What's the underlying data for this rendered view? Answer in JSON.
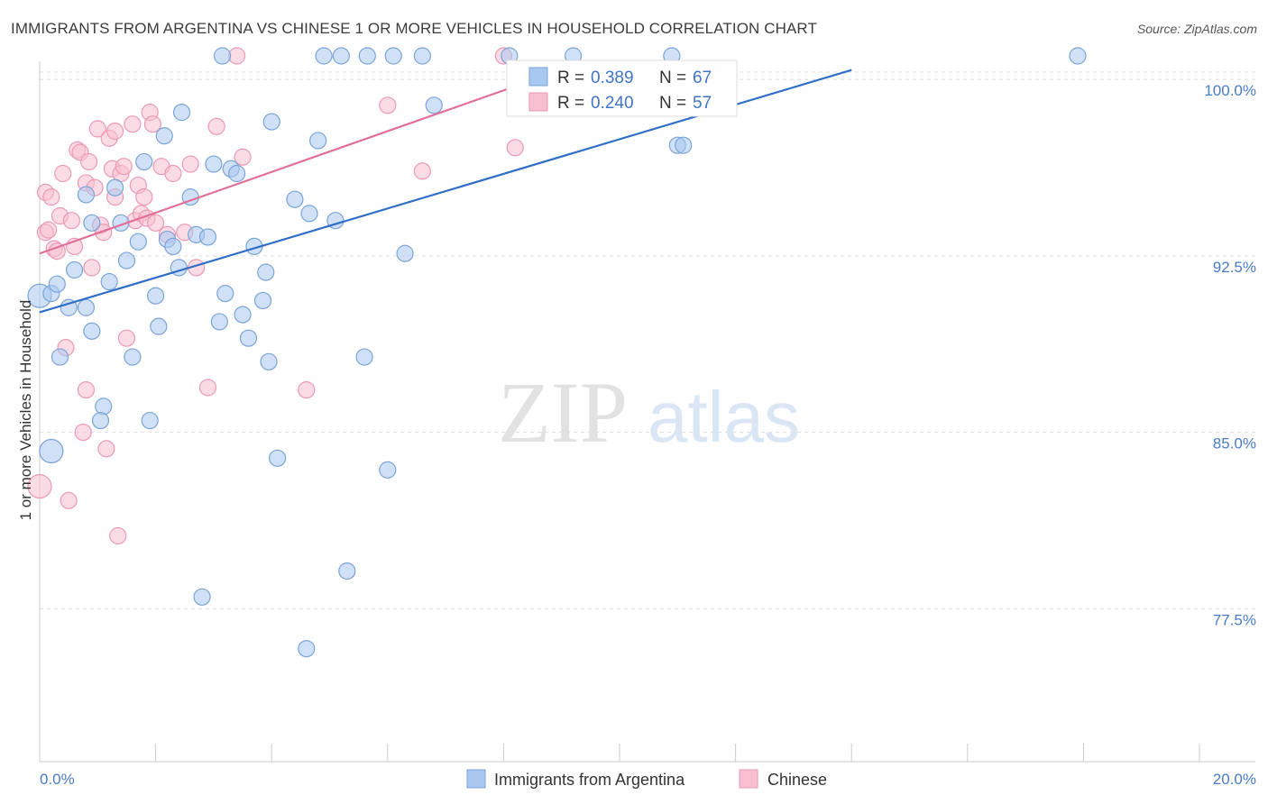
{
  "title": "IMMIGRANTS FROM ARGENTINA VS CHINESE 1 OR MORE VEHICLES IN HOUSEHOLD CORRELATION CHART",
  "source": "Source: ZipAtlas.com",
  "watermark": {
    "zip": "ZIP",
    "atlas": "atlas"
  },
  "colors": {
    "argentina_fill": "#a9c8f0",
    "argentina_stroke": "#7aa4d8",
    "argentina_line": "#2f6fc8",
    "chinese_fill": "#f7bfd0",
    "chinese_stroke": "#eb9ab4",
    "chinese_line": "#e0709a",
    "tick_text": "#4a7cc9",
    "grid": "#dddddd"
  },
  "legend": {
    "rows": [
      {
        "r_label": "R =",
        "r_value": "0.389",
        "n_label": "N =",
        "n_value": "67"
      },
      {
        "r_label": "R =",
        "r_value": "0.240",
        "n_label": "N =",
        "n_value": "57"
      }
    ]
  },
  "chart_data": {
    "type": "scatter",
    "xlabel": "",
    "ylabel": "1 or more Vehicles in Household",
    "xlim": [
      0,
      20
    ],
    "ylim": [
      71,
      101
    ],
    "x_tick_labels": [
      "0.0%",
      "20.0%"
    ],
    "y_ticks": [
      77.5,
      85.0,
      92.5,
      100.0
    ],
    "y_tick_labels": [
      "77.5%",
      "85.0%",
      "92.5%",
      "100.0%"
    ],
    "grid": "horizontal dashed",
    "legend_placement": "top-center",
    "bottom_legend": [
      "Immigrants from Argentina",
      "Chinese"
    ],
    "series": [
      {
        "name": "Immigrants from Argentina",
        "trendline": [
          [
            0,
            90.1
          ],
          [
            14.0,
            100.4
          ]
        ],
        "points": [
          [
            0.0,
            90.8
          ],
          [
            0.2,
            90.9
          ],
          [
            0.3,
            91.3
          ],
          [
            0.5,
            90.3
          ],
          [
            0.2,
            84.2
          ],
          [
            0.35,
            88.2
          ],
          [
            0.6,
            91.9
          ],
          [
            0.8,
            90.3
          ],
          [
            0.9,
            89.3
          ],
          [
            0.8,
            95.1
          ],
          [
            0.9,
            93.9
          ],
          [
            1.1,
            86.1
          ],
          [
            1.05,
            85.5
          ],
          [
            1.2,
            91.4
          ],
          [
            1.3,
            95.4
          ],
          [
            1.4,
            93.9
          ],
          [
            1.5,
            92.3
          ],
          [
            1.6,
            88.2
          ],
          [
            1.7,
            93.1
          ],
          [
            1.8,
            96.5
          ],
          [
            1.9,
            85.5
          ],
          [
            2.0,
            90.8
          ],
          [
            2.05,
            89.5
          ],
          [
            2.15,
            97.6
          ],
          [
            2.2,
            93.2
          ],
          [
            2.3,
            92.9
          ],
          [
            2.4,
            92.0
          ],
          [
            2.45,
            98.6
          ],
          [
            2.6,
            95.0
          ],
          [
            2.7,
            93.4
          ],
          [
            2.8,
            78.0
          ],
          [
            2.9,
            93.3
          ],
          [
            3.0,
            96.4
          ],
          [
            3.1,
            89.7
          ],
          [
            3.15,
            101.0
          ],
          [
            3.2,
            90.9
          ],
          [
            3.3,
            96.2
          ],
          [
            3.4,
            96.0
          ],
          [
            3.5,
            90.0
          ],
          [
            3.6,
            89.0
          ],
          [
            3.7,
            92.9
          ],
          [
            3.85,
            90.6
          ],
          [
            3.9,
            91.8
          ],
          [
            3.95,
            88.0
          ],
          [
            4.0,
            98.2
          ],
          [
            4.1,
            83.9
          ],
          [
            4.4,
            94.9
          ],
          [
            4.6,
            75.8
          ],
          [
            4.65,
            94.3
          ],
          [
            4.8,
            97.4
          ],
          [
            4.9,
            101.0
          ],
          [
            5.1,
            94.0
          ],
          [
            5.2,
            101.0
          ],
          [
            5.3,
            79.1
          ],
          [
            5.6,
            88.2
          ],
          [
            5.65,
            101.0
          ],
          [
            6.0,
            83.4
          ],
          [
            6.1,
            101.0
          ],
          [
            6.3,
            92.6
          ],
          [
            6.6,
            101.0
          ],
          [
            6.8,
            98.9
          ],
          [
            8.1,
            101.0
          ],
          [
            9.2,
            101.0
          ],
          [
            10.9,
            101.0
          ],
          [
            11.0,
            97.2
          ],
          [
            11.1,
            97.2
          ],
          [
            17.9,
            101.0
          ]
        ]
      },
      {
        "name": "Chinese",
        "trendline": [
          [
            0,
            92.6
          ],
          [
            9.0,
            100.4
          ]
        ],
        "points": [
          [
            0.0,
            82.7
          ],
          [
            0.1,
            95.2
          ],
          [
            0.1,
            93.5
          ],
          [
            0.15,
            93.6
          ],
          [
            0.2,
            95.0
          ],
          [
            0.25,
            92.8
          ],
          [
            0.3,
            92.7
          ],
          [
            0.35,
            94.2
          ],
          [
            0.4,
            96.0
          ],
          [
            0.45,
            88.6
          ],
          [
            0.5,
            82.1
          ],
          [
            0.55,
            94.0
          ],
          [
            0.6,
            92.9
          ],
          [
            0.65,
            97.0
          ],
          [
            0.7,
            96.9
          ],
          [
            0.75,
            85.0
          ],
          [
            0.8,
            95.6
          ],
          [
            0.8,
            86.8
          ],
          [
            0.85,
            96.5
          ],
          [
            0.9,
            92.0
          ],
          [
            0.95,
            95.4
          ],
          [
            1.0,
            97.9
          ],
          [
            1.05,
            93.8
          ],
          [
            1.1,
            93.5
          ],
          [
            1.15,
            84.3
          ],
          [
            1.2,
            97.5
          ],
          [
            1.25,
            96.2
          ],
          [
            1.3,
            95.0
          ],
          [
            1.3,
            97.8
          ],
          [
            1.35,
            80.6
          ],
          [
            1.4,
            96.0
          ],
          [
            1.45,
            96.3
          ],
          [
            1.5,
            89.0
          ],
          [
            1.6,
            98.1
          ],
          [
            1.65,
            94.0
          ],
          [
            1.7,
            95.5
          ],
          [
            1.75,
            94.3
          ],
          [
            1.8,
            95.0
          ],
          [
            1.85,
            94.1
          ],
          [
            1.9,
            98.6
          ],
          [
            1.95,
            98.1
          ],
          [
            2.0,
            93.9
          ],
          [
            2.1,
            96.3
          ],
          [
            2.2,
            93.4
          ],
          [
            2.3,
            96.0
          ],
          [
            2.5,
            93.5
          ],
          [
            2.6,
            96.4
          ],
          [
            2.7,
            92.0
          ],
          [
            2.9,
            86.9
          ],
          [
            3.05,
            98.0
          ],
          [
            3.4,
            101.0
          ],
          [
            3.5,
            96.7
          ],
          [
            4.6,
            86.8
          ],
          [
            6.0,
            98.9
          ],
          [
            6.6,
            96.1
          ],
          [
            8.2,
            97.1
          ],
          [
            8.0,
            101.0
          ]
        ]
      }
    ]
  }
}
